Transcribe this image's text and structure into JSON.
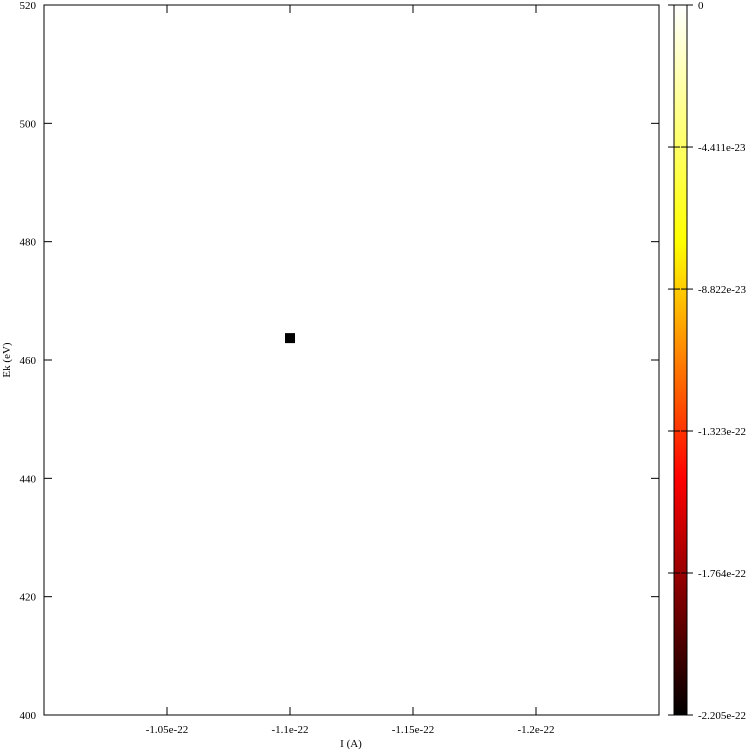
{
  "chart_data": {
    "type": "heatmap",
    "title": "",
    "xlabel": "I (A)",
    "ylabel": "Ek (eV)",
    "x_ticks": [
      {
        "value": -1.05e-22,
        "label": "-1.05e-22"
      },
      {
        "value": -1.1e-22,
        "label": "-1.1e-22"
      },
      {
        "value": -1.15e-22,
        "label": "-1.15e-22"
      },
      {
        "value": -1.2e-22,
        "label": "-1.2e-22"
      }
    ],
    "y_ticks": [
      {
        "value": 400,
        "label": "400"
      },
      {
        "value": 420,
        "label": "420"
      },
      {
        "value": 440,
        "label": "440"
      },
      {
        "value": 460,
        "label": "460"
      },
      {
        "value": 480,
        "label": "480"
      },
      {
        "value": 500,
        "label": "500"
      },
      {
        "value": 520,
        "label": "520"
      }
    ],
    "xlim": [
      -1e-22,
      -1.25e-22
    ],
    "ylim": [
      400,
      520
    ],
    "points": [
      {
        "x": -1.1e-22,
        "y": 463.7,
        "value": -2.205e-22
      }
    ],
    "colorbar": {
      "range": [
        -2.205e-22,
        0
      ],
      "colormap": "hot",
      "stops": [
        "#000000",
        "#ff0000",
        "#ffff00",
        "#ffffff"
      ],
      "ticks": [
        {
          "value": 0,
          "label": "0"
        },
        {
          "value": -4.411e-23,
          "label": "-4.411e-23"
        },
        {
          "value": -8.822e-23,
          "label": "-8.822e-23"
        },
        {
          "value": -1.323e-22,
          "label": "-1.323e-22"
        },
        {
          "value": -1.764e-22,
          "label": "-1.764e-22"
        },
        {
          "value": -2.205e-22,
          "label": "-2.205e-22"
        }
      ]
    },
    "grid": false,
    "legend": "none"
  }
}
